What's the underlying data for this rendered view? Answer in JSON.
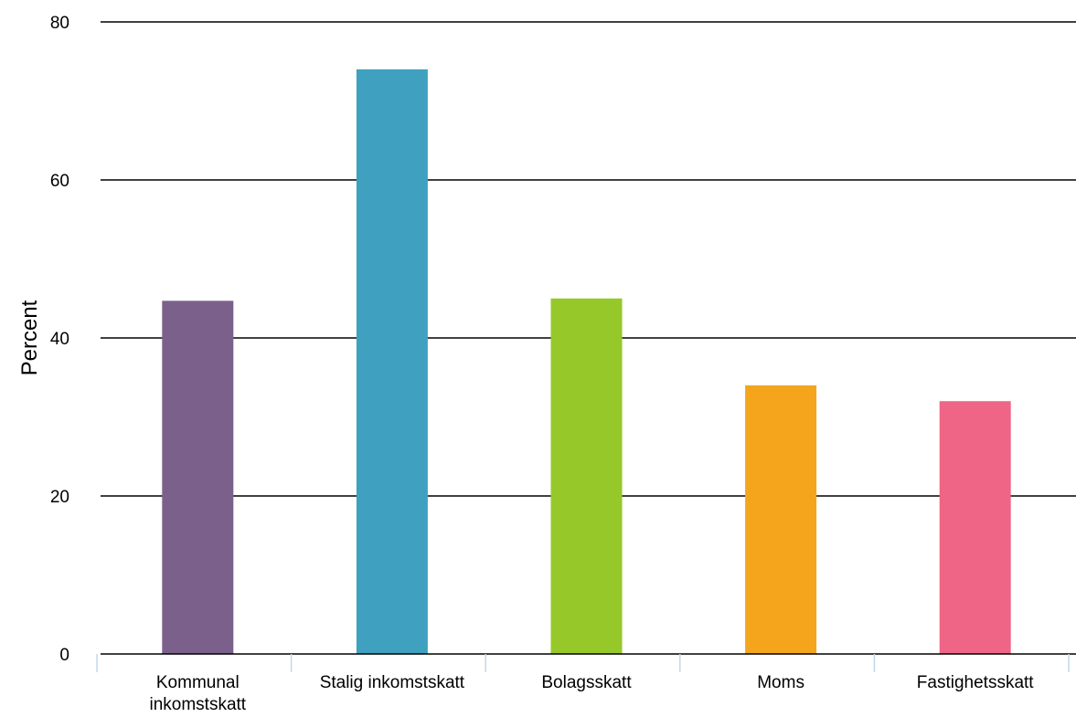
{
  "chart_data": {
    "type": "bar",
    "title": "",
    "xlabel": "",
    "ylabel": "Percent",
    "ylim": [
      0,
      80
    ],
    "yticks": [
      0,
      20,
      40,
      60,
      80
    ],
    "grid": true,
    "legend": "none",
    "categories": [
      [
        "Kommunal",
        "inkomstskatt"
      ],
      [
        "Stalig inkomstskatt"
      ],
      [
        "Bolagsskatt"
      ],
      [
        "Moms"
      ],
      [
        "Fastighetsskatt"
      ]
    ],
    "values": [
      44.7,
      74.0,
      45.0,
      34.0,
      32.0
    ],
    "colors": [
      "#7b608c",
      "#3fa1bf",
      "#96c82a",
      "#f4a51c",
      "#ef6585"
    ],
    "axis_color": "#000000",
    "category_separator_color": "#c6d7e8"
  }
}
